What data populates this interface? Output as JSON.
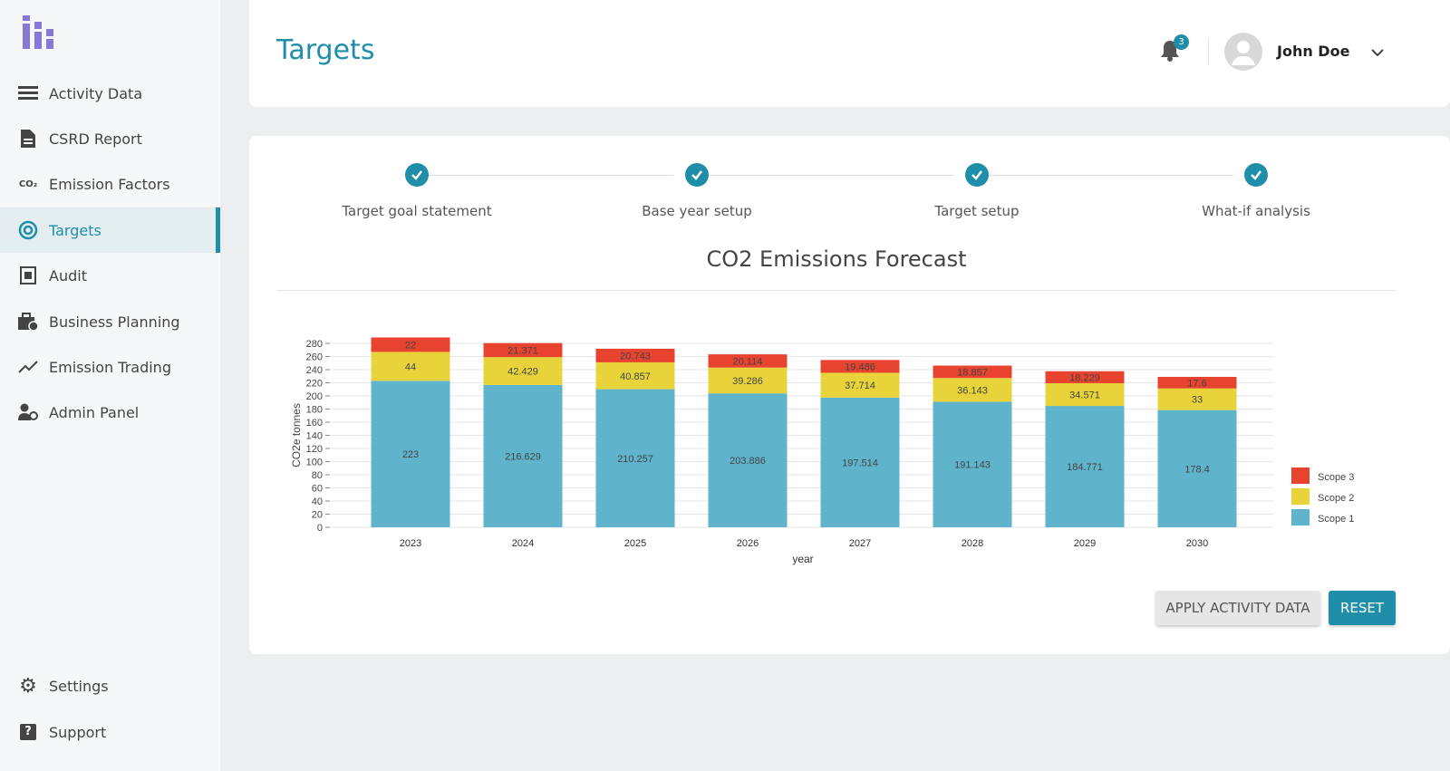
{
  "sidebar": {
    "logo": "bar-chart-logo",
    "items": [
      {
        "label": "Activity Data",
        "icon": "list-icon"
      },
      {
        "label": "CSRD Report",
        "icon": "document-icon"
      },
      {
        "label": "Emission Factors",
        "icon": "co2-icon",
        "icon_text": "CO₂"
      },
      {
        "label": "Targets",
        "icon": "target-icon",
        "active": true
      },
      {
        "label": "Audit",
        "icon": "audit-icon"
      },
      {
        "label": "Business Planning",
        "icon": "briefcase-icon"
      },
      {
        "label": "Emission Trading",
        "icon": "trend-icon"
      },
      {
        "label": "Admin Panel",
        "icon": "user-gear-icon"
      }
    ],
    "bottom": [
      {
        "label": "Settings",
        "icon": "gear-icon"
      },
      {
        "label": "Support",
        "icon": "help-icon",
        "icon_text": "?"
      }
    ]
  },
  "header": {
    "title": "Targets",
    "notifications": "3",
    "user": "John Doe"
  },
  "stepper": [
    {
      "label": "Target goal statement",
      "done": true
    },
    {
      "label": "Base year setup",
      "done": true
    },
    {
      "label": "Target setup",
      "done": true
    },
    {
      "label": "What-if analysis",
      "done": true
    }
  ],
  "chart_title": "CO2 Emissions Forecast",
  "chart_data": {
    "type": "bar",
    "stacked": true,
    "xlabel": "year",
    "ylabel": "CO2e tonnes",
    "ylim": [
      0,
      280
    ],
    "yticks": [
      0,
      20,
      40,
      60,
      80,
      100,
      120,
      140,
      160,
      180,
      200,
      220,
      240,
      260,
      280
    ],
    "grid": true,
    "legend": "right",
    "categories": [
      "2023",
      "2024",
      "2025",
      "2026",
      "2027",
      "2028",
      "2029",
      "2030"
    ],
    "series": [
      {
        "name": "Scope 1",
        "color": "#5fb4cb",
        "values": [
          223,
          216.629,
          210.257,
          203.886,
          197.514,
          191.143,
          184.771,
          178.4
        ]
      },
      {
        "name": "Scope 2",
        "color": "#e8d43a",
        "values": [
          44,
          42.429,
          40.857,
          39.286,
          37.714,
          36.143,
          34.571,
          33
        ]
      },
      {
        "name": "Scope 3",
        "color": "#e8432e",
        "values": [
          22,
          21.371,
          20.743,
          20.114,
          19.486,
          18.857,
          18.229,
          17.6
        ]
      }
    ]
  },
  "buttons": {
    "apply": "APPLY ACTIVITY DATA",
    "reset": "RESET"
  }
}
